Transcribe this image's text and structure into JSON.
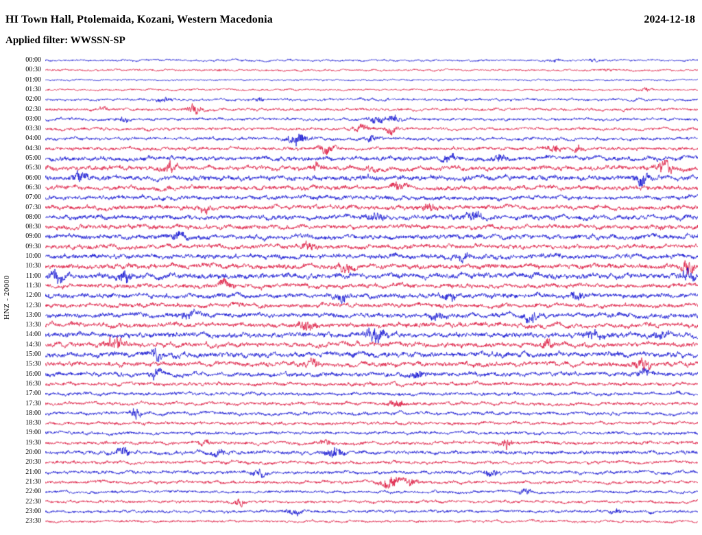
{
  "header": {
    "title": "HI Town Hall, Ptolemaida, Kozani, Western Macedonia",
    "date": "2024-12-18",
    "filter_line": "Applied filter: WWSSN-SP"
  },
  "chart_data": {
    "type": "line",
    "variant": "helicorder-seismogram",
    "title": "HI Town Hall, Ptolemaida, Kozani, Western Macedonia",
    "date": "2024-12-18",
    "filter": "WWSSN-SP",
    "channel_scale_label": "HNZ - 20000",
    "minutes_per_row": 30,
    "legend_position": "none",
    "grid": false,
    "rows": [
      "00:00",
      "00:30",
      "01:00",
      "01:30",
      "02:00",
      "02:30",
      "03:00",
      "03:30",
      "04:00",
      "04:30",
      "05:00",
      "05:30",
      "06:00",
      "06:30",
      "07:00",
      "07:30",
      "08:00",
      "08:30",
      "09:00",
      "09:30",
      "10:00",
      "10:30",
      "11:00",
      "11:30",
      "12:00",
      "12:30",
      "13:00",
      "13:30",
      "14:00",
      "14:30",
      "15:00",
      "15:30",
      "16:00",
      "16:30",
      "17:00",
      "17:30",
      "18:00",
      "18:30",
      "19:00",
      "19:30",
      "20:00",
      "20:30",
      "21:00",
      "21:30",
      "22:00",
      "22:30",
      "23:00",
      "23:30"
    ],
    "colors": {
      "even_row": "#0f0fd0",
      "odd_row": "#dc143c",
      "text": "#000000",
      "background": "#ffffff"
    },
    "base_amplitudes": [
      1.0,
      1.0,
      0.8,
      0.9,
      1.3,
      1.4,
      1.4,
      1.5,
      1.6,
      1.7,
      2.2,
      2.3,
      2.5,
      2.3,
      2.2,
      2.2,
      2.4,
      2.3,
      2.4,
      2.2,
      2.4,
      2.5,
      2.7,
      2.2,
      2.4,
      2.2,
      2.4,
      2.4,
      2.6,
      2.4,
      2.6,
      2.4,
      2.2,
      1.8,
      1.7,
      1.7,
      1.7,
      1.6,
      1.6,
      1.7,
      1.9,
      1.6,
      1.7,
      1.6,
      1.4,
      1.4,
      1.5,
      1.2
    ],
    "events": [
      [
        0,
        0.78,
        1.2,
        6
      ],
      [
        0,
        0.84,
        1.0,
        5
      ],
      [
        1,
        0.27,
        1.0,
        5
      ],
      [
        1,
        0.86,
        1.2,
        5
      ],
      [
        3,
        0.92,
        1.8,
        6
      ],
      [
        4,
        0.18,
        1.8,
        7
      ],
      [
        4,
        0.33,
        1.2,
        6
      ],
      [
        5,
        0.09,
        1.0,
        5
      ],
      [
        5,
        0.23,
        3.5,
        7
      ],
      [
        6,
        0.12,
        1.5,
        6
      ],
      [
        6,
        0.51,
        3.2,
        8
      ],
      [
        6,
        0.535,
        2.5,
        6
      ],
      [
        7,
        0.485,
        2.0,
        8
      ],
      [
        7,
        0.53,
        1.8,
        6
      ],
      [
        8,
        0.385,
        3.8,
        9
      ],
      [
        8,
        0.5,
        1.6,
        6
      ],
      [
        9,
        0.43,
        2.4,
        8
      ],
      [
        9,
        0.78,
        2.0,
        7
      ],
      [
        9,
        0.815,
        1.6,
        5
      ],
      [
        10,
        0.62,
        1.8,
        7
      ],
      [
        10,
        0.695,
        1.5,
        6
      ],
      [
        11,
        0.19,
        1.8,
        7
      ],
      [
        11,
        0.415,
        1.4,
        6
      ],
      [
        11,
        0.5,
        1.4,
        6
      ],
      [
        11,
        0.95,
        2.6,
        8
      ],
      [
        12,
        0.055,
        1.8,
        7
      ],
      [
        12,
        0.915,
        2.2,
        8
      ],
      [
        13,
        0.54,
        1.8,
        7
      ],
      [
        15,
        0.245,
        1.4,
        6
      ],
      [
        15,
        0.59,
        1.5,
        7
      ],
      [
        16,
        0.505,
        1.8,
        7
      ],
      [
        16,
        0.655,
        1.8,
        7
      ],
      [
        18,
        0.205,
        1.8,
        7
      ],
      [
        19,
        0.405,
        1.8,
        7
      ],
      [
        20,
        0.64,
        1.5,
        6
      ],
      [
        21,
        0.46,
        1.8,
        8
      ],
      [
        21,
        0.985,
        2.2,
        6
      ],
      [
        22,
        0.018,
        2.2,
        6
      ],
      [
        22,
        0.12,
        2.2,
        7
      ],
      [
        22,
        0.985,
        2.2,
        6
      ],
      [
        23,
        0.275,
        1.8,
        7
      ],
      [
        24,
        0.455,
        1.8,
        7
      ],
      [
        24,
        0.62,
        1.5,
        6
      ],
      [
        24,
        0.815,
        1.5,
        6
      ],
      [
        26,
        0.22,
        1.8,
        7
      ],
      [
        26,
        0.6,
        1.5,
        6
      ],
      [
        26,
        0.745,
        1.8,
        7
      ],
      [
        27,
        0.4,
        2.2,
        8
      ],
      [
        28,
        0.505,
        2.6,
        9
      ],
      [
        28,
        0.84,
        1.8,
        7
      ],
      [
        28,
        0.945,
        1.8,
        6
      ],
      [
        29,
        0.107,
        2.6,
        8
      ],
      [
        29,
        0.77,
        1.5,
        6
      ],
      [
        30,
        0.17,
        1.8,
        7
      ],
      [
        31,
        0.41,
        1.5,
        6
      ],
      [
        31,
        0.916,
        2.2,
        7
      ],
      [
        32,
        0.17,
        1.5,
        6
      ],
      [
        32,
        0.57,
        1.5,
        6
      ],
      [
        32,
        0.916,
        1.8,
        6
      ],
      [
        35,
        0.538,
        1.8,
        7
      ],
      [
        36,
        0.139,
        3.2,
        5
      ],
      [
        39,
        0.245,
        1.4,
        6
      ],
      [
        39,
        0.43,
        1.4,
        6
      ],
      [
        39,
        0.706,
        2.8,
        5
      ],
      [
        40,
        0.118,
        2.2,
        7
      ],
      [
        40,
        0.265,
        1.5,
        6
      ],
      [
        40,
        0.443,
        2.8,
        8
      ],
      [
        42,
        0.328,
        1.8,
        7
      ],
      [
        42,
        0.685,
        2.4,
        7
      ],
      [
        43,
        0.527,
        3.8,
        8
      ],
      [
        43,
        0.56,
        2.5,
        6
      ],
      [
        44,
        0.737,
        1.6,
        6
      ],
      [
        45,
        0.296,
        2.4,
        7
      ],
      [
        46,
        0.38,
        1.8,
        7
      ],
      [
        46,
        0.875,
        1.5,
        6
      ]
    ]
  }
}
